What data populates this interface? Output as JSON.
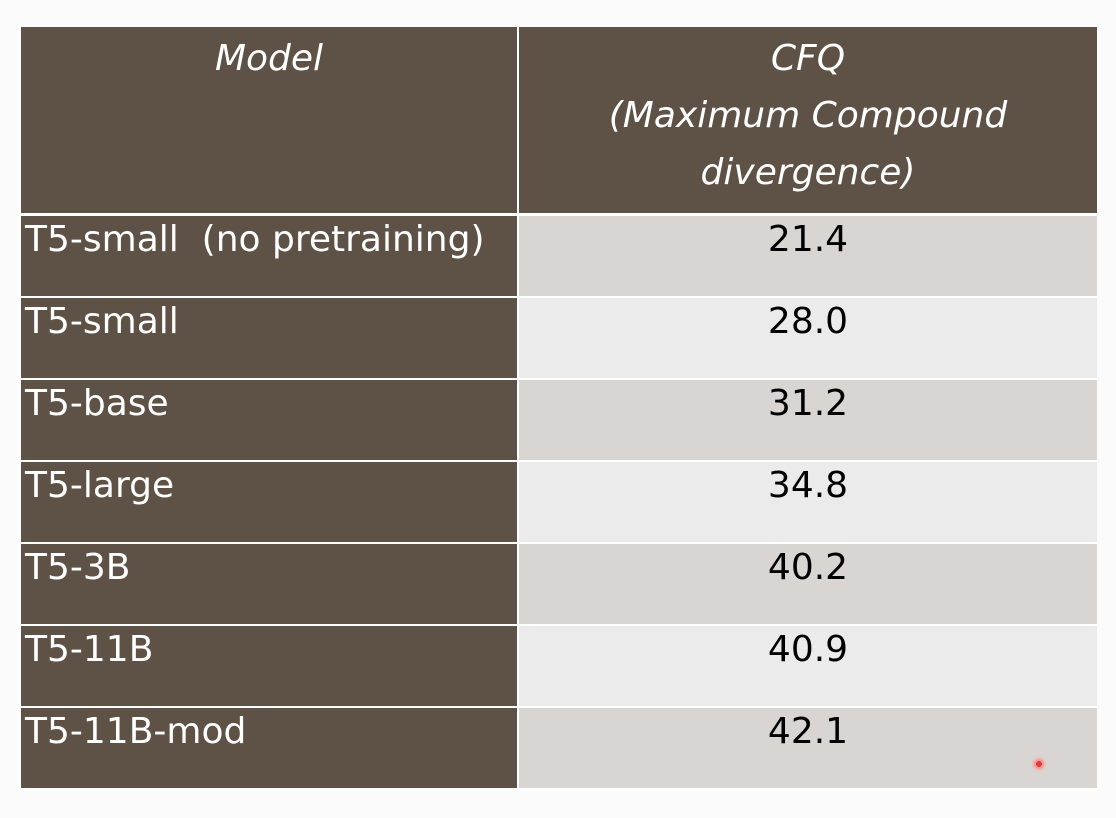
{
  "table": {
    "headers": {
      "model": "Model",
      "cfq_lines": [
        "CFQ",
        "(Maximum Compound",
        "divergence)"
      ]
    },
    "rows": [
      {
        "model": "T5-small  (no pretraining)",
        "cfq": "21.4"
      },
      {
        "model": "T5-small",
        "cfq": "28.0"
      },
      {
        "model": "T5-base",
        "cfq": "31.2"
      },
      {
        "model": "T5-large",
        "cfq": "34.8"
      },
      {
        "model": "T5-3B",
        "cfq": "40.2"
      },
      {
        "model": "T5-11B",
        "cfq": "40.9"
      },
      {
        "model": "T5-11B-mod",
        "cfq": "42.1"
      }
    ]
  },
  "colors": {
    "header_bg": "#5e5145",
    "row_odd_bg": "#d8d5d3",
    "row_even_bg": "#ebebeb"
  }
}
